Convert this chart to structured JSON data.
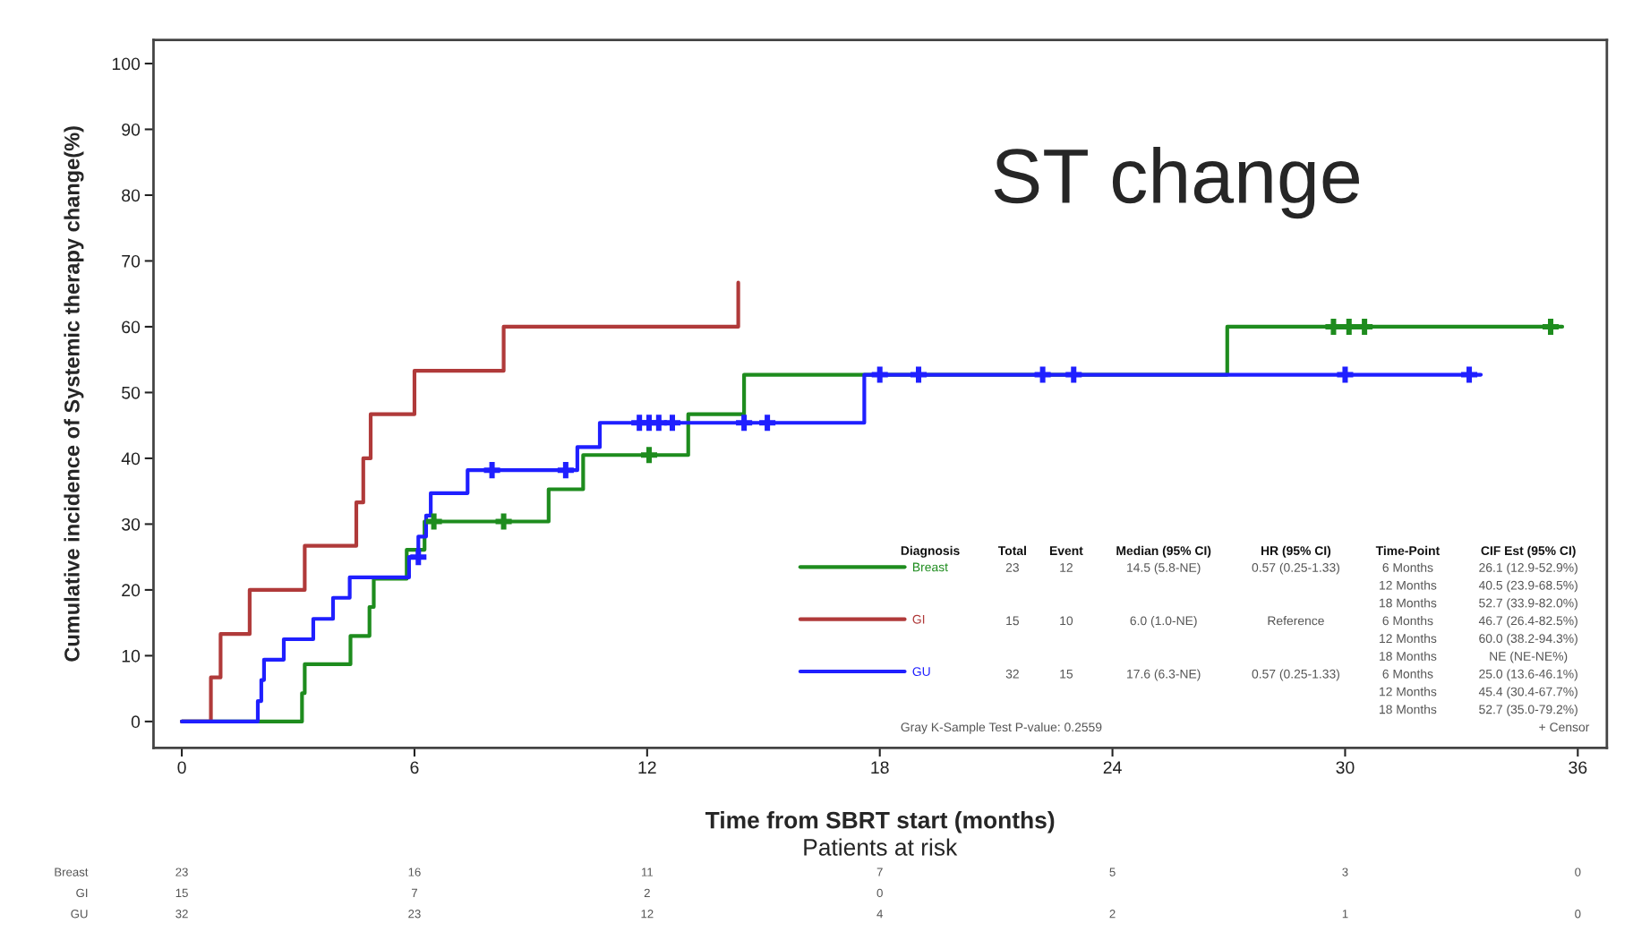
{
  "chart_data": {
    "type": "step",
    "title": "ST change",
    "xlabel": "Time from SBRT start (months)",
    "ylabel": "Cumulative incidence of Systemic therapy change(%)",
    "xlim": [
      -0.73,
      36.75
    ],
    "ylim": [
      -4,
      103.6
    ],
    "xticks": [
      0,
      6,
      12,
      18,
      24,
      30,
      36
    ],
    "yticks": [
      0,
      10,
      20,
      30,
      40,
      50,
      60,
      70,
      80,
      90,
      100
    ],
    "grid": false,
    "legend": "bottom right",
    "marker": "none",
    "line_style": "solid",
    "series": [
      {
        "name": "Breast",
        "color": "#1e8c1e",
        "x": [
          0,
          3.1,
          3.17,
          4.35,
          4.84,
          4.95,
          5.8,
          6.26,
          9.46,
          10.35,
          13.06,
          14.5,
          26.96,
          35.6
        ],
        "values": [
          0,
          4.3,
          8.7,
          13.0,
          17.4,
          21.7,
          26.1,
          30.4,
          35.3,
          40.5,
          46.7,
          52.7,
          60.0,
          60.0
        ]
      },
      {
        "name": "GI",
        "color": "#b03a3a",
        "x": [
          0,
          0.75,
          1.0,
          1.75,
          3.17,
          4.5,
          4.68,
          4.87,
          6.0,
          8.3,
          14.35
        ],
        "values": [
          0,
          6.7,
          13.3,
          20.0,
          26.7,
          33.3,
          40.0,
          46.7,
          53.3,
          60.0,
          66.7
        ]
      },
      {
        "name": "GU",
        "color": "#1f1fff",
        "x": [
          0,
          1.96,
          2.05,
          2.12,
          2.63,
          3.39,
          3.9,
          4.33,
          5.86,
          6.1,
          6.3,
          6.42,
          7.37,
          10.2,
          10.78,
          17.6,
          33.5
        ],
        "values": [
          0,
          3.1,
          6.3,
          9.4,
          12.5,
          15.6,
          18.8,
          21.9,
          25.0,
          28.1,
          31.3,
          34.7,
          38.2,
          41.7,
          45.4,
          52.7,
          52.7
        ]
      },
      {
        "color": "#1e8c1e",
        "type": "scatter",
        "marker": "cross",
        "x": [
          6.5,
          8.3,
          12.05,
          29.7,
          30.1,
          30.5,
          35.3
        ],
        "values": [
          30.4,
          30.4,
          40.5,
          60.0,
          60.0,
          60.0,
          60.0
        ]
      },
      {
        "color": "#1f1fff",
        "type": "scatter",
        "marker": "cross",
        "x": [
          6.1,
          8.0,
          9.9,
          11.8,
          12.05,
          12.3,
          12.65,
          14.5,
          15.1,
          18.0,
          19.0,
          22.2,
          23.0,
          30.0,
          33.2
        ],
        "values": [
          25.0,
          38.2,
          38.2,
          45.4,
          45.4,
          45.4,
          45.4,
          45.4,
          45.4,
          52.7,
          52.7,
          52.7,
          52.7,
          52.7,
          52.7
        ]
      }
    ],
    "annotations": [
      "Diagnosis",
      "Total",
      "Event",
      "Median (95% CI)",
      "HR (95% CI)",
      "Time-Point",
      "CIF Est (95% CI)",
      "23",
      "12",
      "14.5 (5.8-NE)",
      "0.57 (0.25-1.33)",
      "15",
      "10",
      "6.0 (1.0-NE)",
      "Reference",
      "32",
      "15",
      "17.6 (6.3-NE)",
      "0.57 (0.25-1.33)",
      "6 Months",
      "26.1 (12.9-52.9%)",
      "12 Months",
      "40.5 (23.9-68.5%)",
      "18 Months",
      "52.7 (33.9-82.0%)",
      "6 Months",
      "46.7 (26.4-82.5%)",
      "12 Months",
      "60.0 (38.2-94.3%)",
      "18 Months",
      "NE (NE-NE%)",
      "6 Months",
      "25.0 (13.6-46.1%)",
      "12 Months",
      "45.4 (30.4-67.7%)",
      "18 Months",
      "52.7 (35.0-79.2%)",
      "Gray K-Sample Test P-value: 0.2559",
      "+ Censor",
      "Patients at risk",
      "Breast",
      "GI",
      "GU",
      "23",
      "16",
      "11",
      "7",
      "5",
      "3",
      "0",
      "15",
      "7",
      "2",
      "0",
      "32",
      "23",
      "12",
      "4",
      "2",
      "1",
      "0"
    ]
  }
}
